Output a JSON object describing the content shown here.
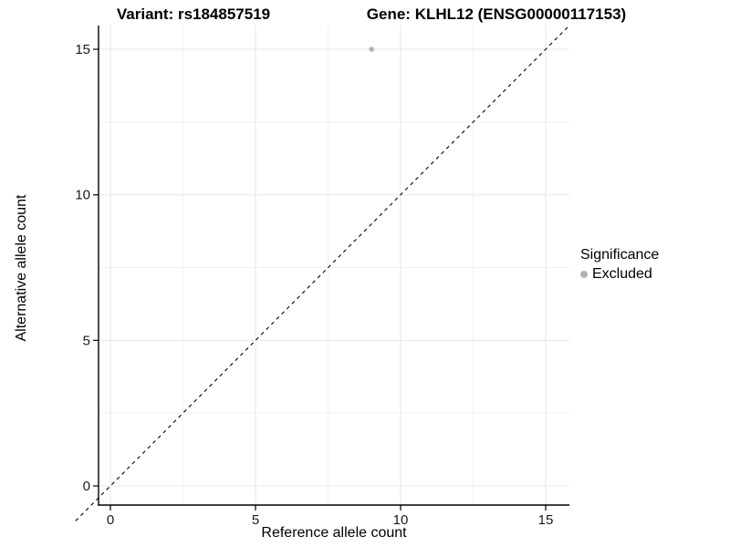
{
  "titles": {
    "variant": "Variant: rs184857519",
    "gene": "Gene: KLHL12 (ENSG00000117153)"
  },
  "axes": {
    "x": {
      "label": "Reference allele count"
    },
    "y": {
      "label": "Alternative allele count"
    }
  },
  "legend": {
    "title": "Significance",
    "items": [
      {
        "label": "Excluded",
        "color": "#b4b4b4"
      }
    ]
  },
  "colors": {
    "point": "#b4b4b4",
    "grid_major": "#e7e7e7",
    "grid_minor": "#f2f2f2",
    "axis_line": "#000000",
    "identity_line": "#000000"
  },
  "chart_data": {
    "type": "scatter",
    "title": "Variant: rs184857519 | Gene: KLHL12 (ENSG00000117153)",
    "xlabel": "Reference allele count",
    "ylabel": "Alternative allele count",
    "xlim": [
      -0.75,
      15.82
    ],
    "ylim": [
      -0.75,
      15.85
    ],
    "x_ticks": [
      0,
      5,
      10,
      15
    ],
    "y_ticks": [
      0,
      5,
      10,
      15
    ],
    "x_minor": [
      2.5,
      7.5,
      12.5
    ],
    "y_minor": [
      2.5,
      7.5,
      12.5
    ],
    "grid": "major+minor",
    "legend_position": "right",
    "series": [
      {
        "name": "Excluded",
        "color": "#b4b4b4",
        "points": [
          {
            "x": 9,
            "y": 15
          }
        ]
      }
    ],
    "identity_line": {
      "equation": "y = x",
      "style": "dashed",
      "t0": -1.2,
      "t1": 15.82
    }
  }
}
